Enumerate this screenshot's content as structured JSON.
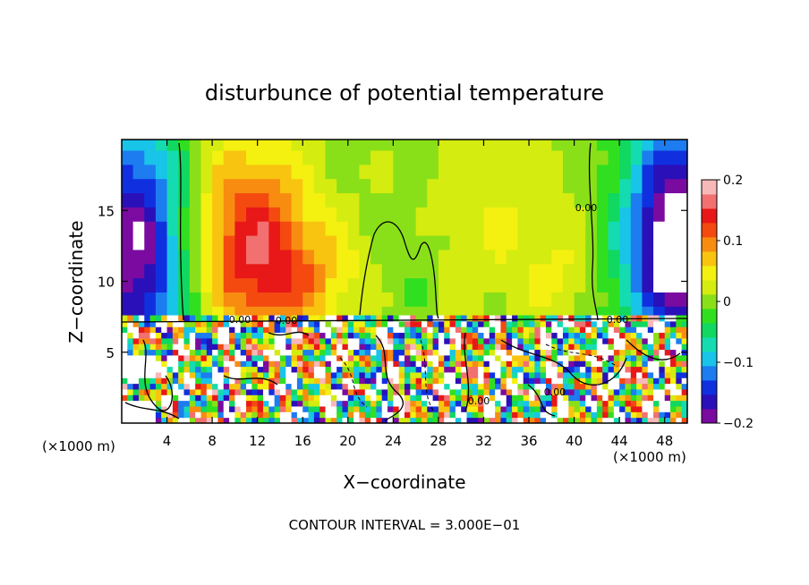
{
  "chart_data": {
    "type": "heatmap",
    "title": "disturbunce of potential temperature",
    "xlabel": "X−coordinate",
    "ylabel": "Z−coordinate",
    "x_unit_left": "(×1000 m)",
    "x_unit_right": "(×1000 m)",
    "footer": "CONTOUR INTERVAL = 3.000E−01",
    "xlim": [
      0,
      50
    ],
    "ylim": [
      0,
      20
    ],
    "x_ticks": [
      4,
      8,
      12,
      16,
      20,
      24,
      28,
      32,
      36,
      40,
      44,
      48
    ],
    "y_ticks": [
      5,
      10,
      15
    ],
    "colorbar": {
      "min": -0.2,
      "max": 0.2,
      "tick_values": [
        0.2,
        0.1,
        0,
        -0.1,
        -0.2
      ],
      "tick_labels": [
        "0.2",
        "0.1",
        "0",
        "−0.1",
        "−0.2"
      ],
      "colors": [
        "#7a0aa0",
        "#2a10b8",
        "#1030e0",
        "#1c7cf0",
        "#18c4e8",
        "#14dcb0",
        "#10d860",
        "#30e020",
        "#8ae018",
        "#d4ec10",
        "#f4f010",
        "#f8c410",
        "#f88c10",
        "#f44a10",
        "#e81818",
        "#f27070",
        "#f8b8b8"
      ]
    },
    "contour_labels": [
      "0.00",
      "0.00",
      "0.00",
      "0.00",
      "0.00",
      "0.00"
    ],
    "upper_layer_cells": {
      "x": [
        0.5,
        1.5,
        2.5,
        3.5,
        4.5,
        5.5,
        6.5,
        7.5,
        8.5,
        9.5,
        10.5,
        11.5,
        12.5,
        13.5,
        14.5,
        15.5,
        16.5,
        17.5,
        18.5,
        19.5,
        20.5,
        21.5,
        22.5,
        23.5,
        24.5,
        25.5,
        26.5,
        27.5,
        28.5,
        29.5,
        30.5,
        31.5,
        32.5,
        33.5,
        34.5,
        35.5,
        36.5,
        37.5,
        38.5,
        39.5,
        40.5,
        41.5,
        42.5,
        43.5,
        44.5,
        45.5,
        46.5,
        47.5,
        48.5,
        49.5
      ],
      "z": [
        7.75,
        8.75,
        9.75,
        10.75,
        11.75,
        12.75,
        13.75,
        14.75,
        15.75,
        16.75,
        17.75,
        18.75,
        19.75
      ]
    }
  }
}
